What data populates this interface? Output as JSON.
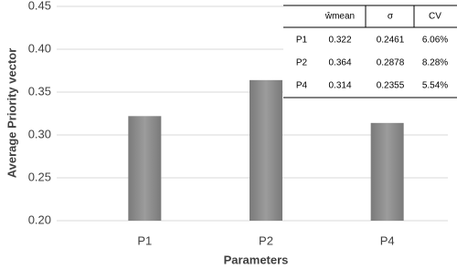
{
  "chart_data": {
    "type": "bar",
    "categories": [
      "P1",
      "P2",
      "P4"
    ],
    "values": [
      0.322,
      0.364,
      0.314
    ],
    "color": "#8f8f8f",
    "x_label": "Parameters",
    "y_label": "Average Priority vector",
    "ylim": [
      0.2,
      0.45
    ],
    "yticks": [
      {
        "value": 0.2,
        "label": "0.20"
      },
      {
        "value": 0.25,
        "label": "0.25"
      },
      {
        "value": 0.3,
        "label": "0.30"
      },
      {
        "value": 0.35,
        "label": "0.35"
      },
      {
        "value": 0.4,
        "label": "0.40"
      },
      {
        "value": 0.45,
        "label": "0.45"
      }
    ],
    "grid": true
  },
  "table": {
    "header": [
      "ŵmean",
      "σ",
      "CV"
    ],
    "rows": [
      [
        "P1",
        "0.322",
        "0.2461",
        "6.06%"
      ],
      [
        "P2",
        "0.364",
        "0.2878",
        "8.28%"
      ],
      [
        "P4",
        "0.314",
        "0.2355",
        "5.54%"
      ]
    ]
  }
}
